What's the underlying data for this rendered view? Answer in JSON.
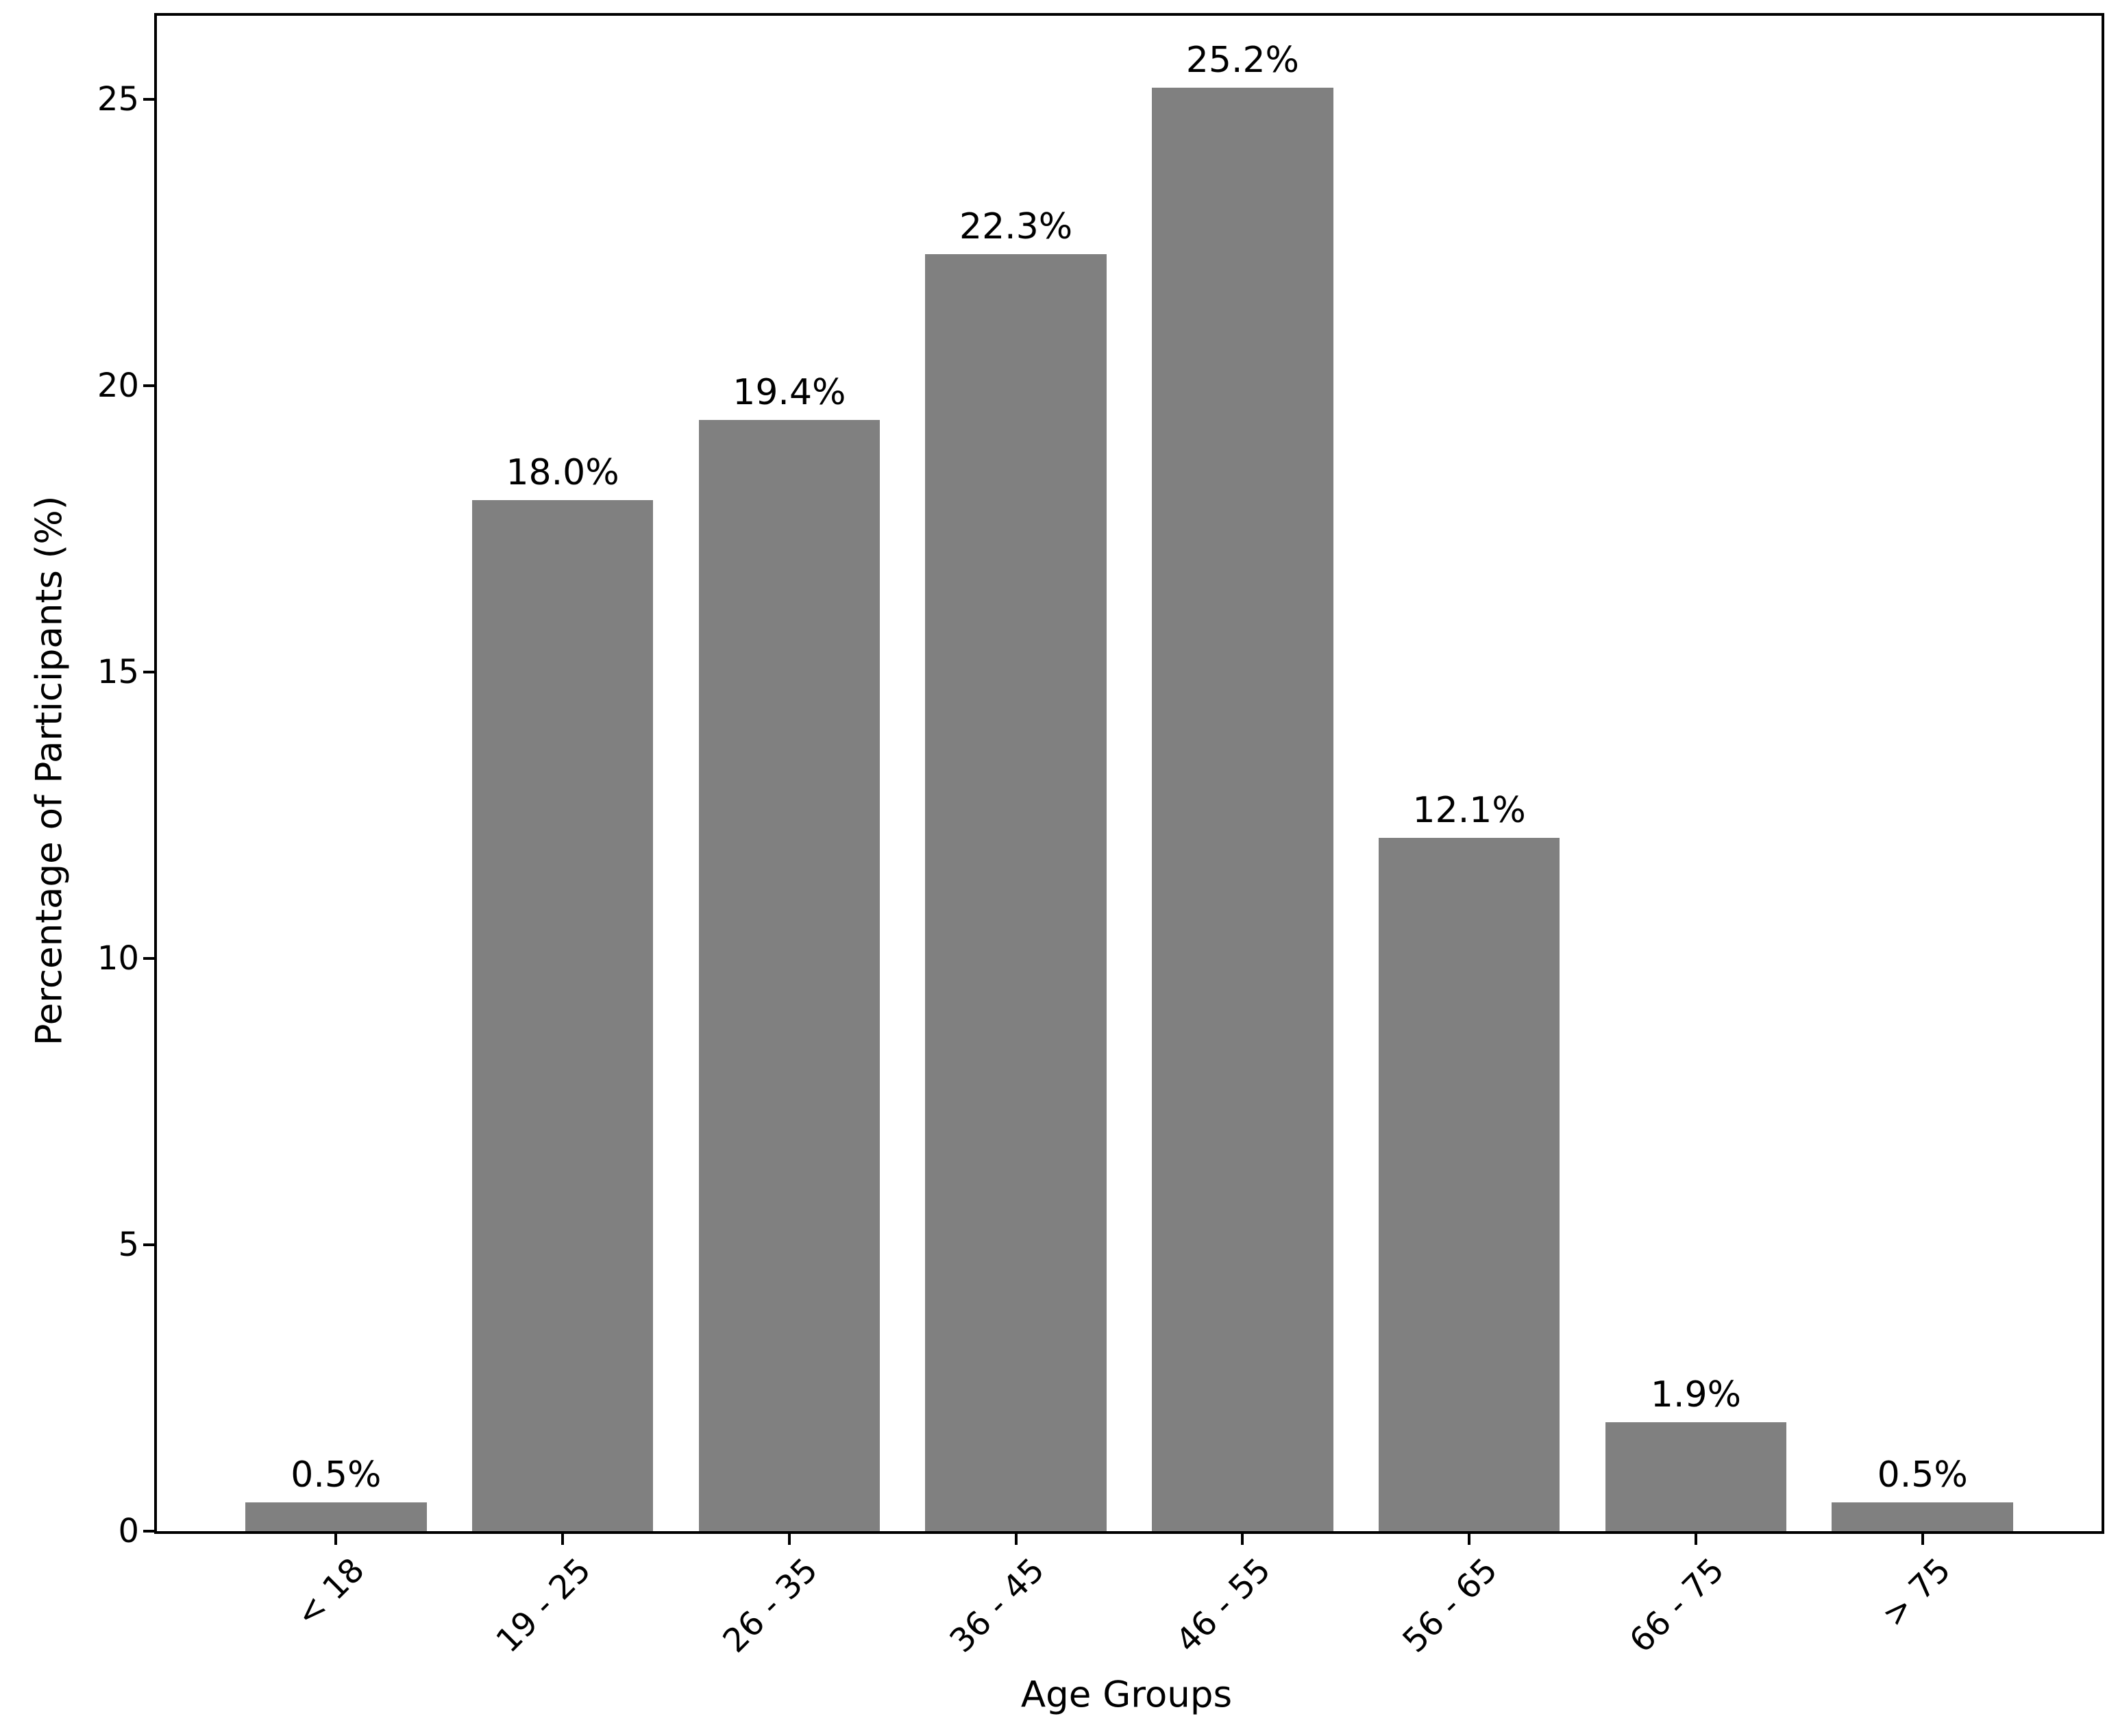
{
  "chart_data": {
    "type": "bar",
    "title": "",
    "xlabel": "Age Groups",
    "ylabel": "Percentage of Participants (%)",
    "categories": [
      "< 18",
      "19 - 25",
      "26 - 35",
      "36 - 45",
      "46 - 55",
      "56 - 65",
      "66 - 75",
      "> 75"
    ],
    "values": [
      0.5,
      18.0,
      19.4,
      22.3,
      25.2,
      12.1,
      1.9,
      0.5
    ],
    "bar_labels": [
      "0.5%",
      "18.0%",
      "19.4%",
      "22.3%",
      "25.2%",
      "12.1%",
      "1.9%",
      "0.5%"
    ],
    "yticks": [
      0,
      5,
      10,
      15,
      20,
      25
    ],
    "ylim": [
      0,
      26.46
    ],
    "bar_color": "#808080",
    "axis_color": "#000000",
    "text_color": "#000000",
    "background_color": "#ffffff",
    "grid": false,
    "legend": null,
    "x_tick_rotation_deg": 45
  }
}
